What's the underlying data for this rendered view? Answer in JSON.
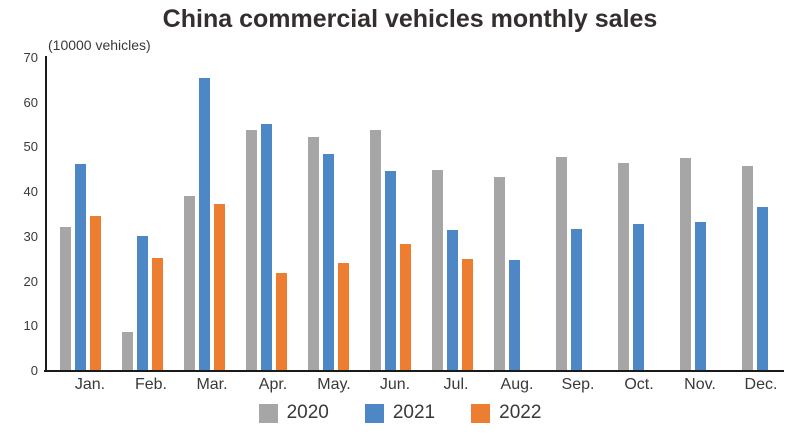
{
  "title": "China commercial vehicles monthly sales",
  "unit_label": "(10000 vehicles)",
  "chart_data": {
    "type": "bar",
    "title": "China commercial vehicles monthly sales",
    "ylabel": "(10000 vehicles)",
    "xlabel": "",
    "ylim": [
      0,
      70
    ],
    "ytick_interval": 10,
    "ytick_labels": [
      "0",
      "10",
      "20",
      "30",
      "40",
      "50",
      "60",
      "70"
    ],
    "grid": false,
    "legend_position": "bottom",
    "categories": [
      "Jan.",
      "Feb.",
      "Mar.",
      "Apr.",
      "May.",
      "Jun.",
      "Jul.",
      "Aug.",
      "Sep.",
      "Oct.",
      "Nov.",
      "Dec."
    ],
    "series": [
      {
        "name": "2020",
        "color": "#A6A6A6",
        "values": [
          32.0,
          8.5,
          39.0,
          53.6,
          52.1,
          53.7,
          44.7,
          43.1,
          47.7,
          46.4,
          47.4,
          45.7
        ]
      },
      {
        "name": "2021",
        "color": "#4E87C6",
        "values": [
          46.0,
          30.0,
          65.3,
          55.1,
          48.3,
          44.6,
          31.2,
          24.7,
          31.6,
          32.6,
          33.1,
          36.4
        ]
      },
      {
        "name": "2022",
        "color": "#ED7D31",
        "values": [
          34.5,
          25.0,
          37.1,
          21.6,
          24.0,
          28.1,
          24.8,
          null,
          null,
          null,
          null,
          null
        ]
      }
    ]
  },
  "colors": {
    "axis": "#1a1a1a",
    "text": "#3b3838",
    "title": "#342e2e",
    "background": "#ffffff"
  }
}
